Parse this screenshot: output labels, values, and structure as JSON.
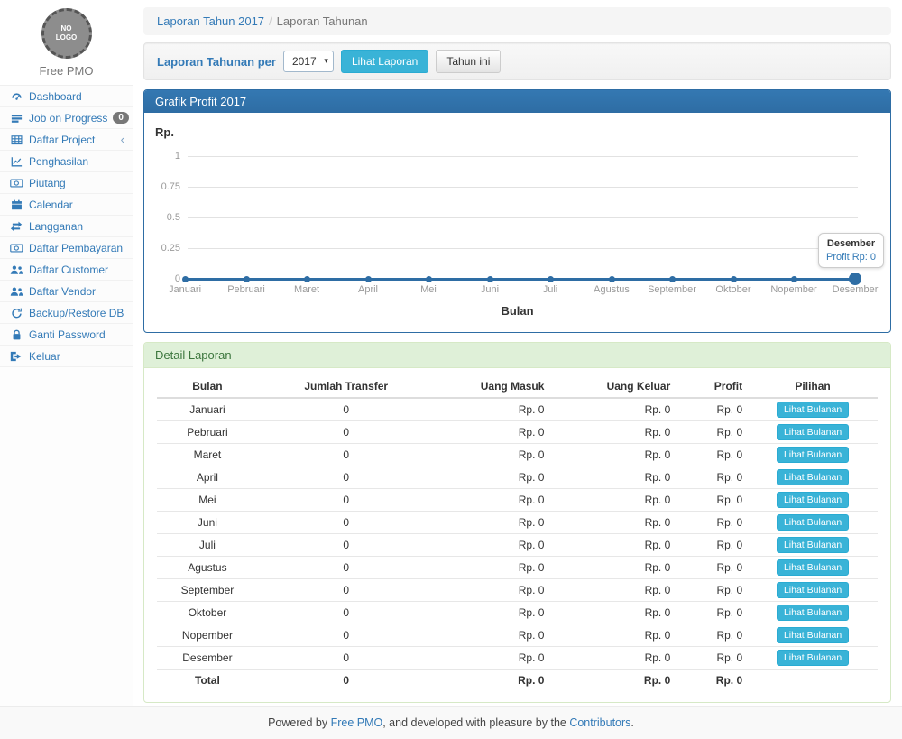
{
  "app": {
    "logo_text": "NO LOGO",
    "name": "Free PMO"
  },
  "sidebar": {
    "items": [
      {
        "slug": "dashboard",
        "label": "Dashboard",
        "icon": "dashboard"
      },
      {
        "slug": "job-on-progress",
        "label": "Job on Progress",
        "icon": "tasks",
        "badge": "0"
      },
      {
        "slug": "daftar-project",
        "label": "Daftar Project",
        "icon": "table",
        "chevron": true
      },
      {
        "slug": "penghasilan",
        "label": "Penghasilan",
        "icon": "line-chart"
      },
      {
        "slug": "piutang",
        "label": "Piutang",
        "icon": "money"
      },
      {
        "slug": "calendar",
        "label": "Calendar",
        "icon": "calendar"
      },
      {
        "slug": "langganan",
        "label": "Langganan",
        "icon": "retweet"
      },
      {
        "slug": "daftar-pembayaran",
        "label": "Daftar Pembayaran",
        "icon": "money"
      },
      {
        "slug": "daftar-customer",
        "label": "Daftar Customer",
        "icon": "users"
      },
      {
        "slug": "daftar-vendor",
        "label": "Daftar Vendor",
        "icon": "users"
      },
      {
        "slug": "backup-restore-db",
        "label": "Backup/Restore DB",
        "icon": "refresh"
      },
      {
        "slug": "ganti-password",
        "label": "Ganti Password",
        "icon": "lock"
      },
      {
        "slug": "keluar",
        "label": "Keluar",
        "icon": "sign-out"
      }
    ]
  },
  "breadcrumb": {
    "link": "Laporan Tahun 2017",
    "separator": "/",
    "current": "Laporan Tahunan"
  },
  "filter": {
    "label": "Laporan Tahunan per",
    "year_value": "2017",
    "submit_label": "Lihat Laporan",
    "this_year_label": "Tahun ini"
  },
  "chart_panel": {
    "title": "Grafik Profit 2017"
  },
  "chart_data": {
    "type": "line",
    "title": "Grafik Profit 2017",
    "xlabel": "Bulan",
    "ylabel": "Rp.",
    "categories": [
      "Januari",
      "Pebruari",
      "Maret",
      "April",
      "Mei",
      "Juni",
      "Juli",
      "Agustus",
      "September",
      "Oktober",
      "Nopember",
      "Desember"
    ],
    "values": [
      0,
      0,
      0,
      0,
      0,
      0,
      0,
      0,
      0,
      0,
      0,
      0
    ],
    "yticks": [
      1,
      0.75,
      0.5,
      0.25,
      0
    ],
    "ylim": [
      0,
      1
    ],
    "grid": true,
    "legend": "none",
    "highlighted_point": "Desember",
    "tooltip": {
      "title": "Desember",
      "text": "Profit Rp: 0"
    },
    "line_color": "#2e6da4"
  },
  "detail_panel": {
    "title": "Detail Laporan",
    "table": {
      "columns": [
        "Bulan",
        "Jumlah Transfer",
        "Uang Masuk",
        "Uang Keluar",
        "Profit",
        "Pilihan"
      ],
      "action_label": "Lihat Bulanan",
      "rows": [
        [
          "Januari",
          "0",
          "Rp. 0",
          "Rp. 0",
          "Rp. 0"
        ],
        [
          "Pebruari",
          "0",
          "Rp. 0",
          "Rp. 0",
          "Rp. 0"
        ],
        [
          "Maret",
          "0",
          "Rp. 0",
          "Rp. 0",
          "Rp. 0"
        ],
        [
          "April",
          "0",
          "Rp. 0",
          "Rp. 0",
          "Rp. 0"
        ],
        [
          "Mei",
          "0",
          "Rp. 0",
          "Rp. 0",
          "Rp. 0"
        ],
        [
          "Juni",
          "0",
          "Rp. 0",
          "Rp. 0",
          "Rp. 0"
        ],
        [
          "Juli",
          "0",
          "Rp. 0",
          "Rp. 0",
          "Rp. 0"
        ],
        [
          "Agustus",
          "0",
          "Rp. 0",
          "Rp. 0",
          "Rp. 0"
        ],
        [
          "September",
          "0",
          "Rp. 0",
          "Rp. 0",
          "Rp. 0"
        ],
        [
          "Oktober",
          "0",
          "Rp. 0",
          "Rp. 0",
          "Rp. 0"
        ],
        [
          "Nopember",
          "0",
          "Rp. 0",
          "Rp. 0",
          "Rp. 0"
        ],
        [
          "Desember",
          "0",
          "Rp. 0",
          "Rp. 0",
          "Rp. 0"
        ]
      ],
      "total_row": [
        "Total",
        "0",
        "Rp. 0",
        "Rp. 0",
        "Rp. 0"
      ]
    }
  },
  "footer": {
    "prefix": "Powered by ",
    "link1": "Free PMO",
    "middle": ", and developed with pleasure by the ",
    "link2": "Contributors",
    "suffix": "."
  },
  "colors": {
    "primary": "#2e6da4",
    "info_button": "#39b3d7",
    "link": "#337ab7",
    "success_header_bg": "#dff0d8",
    "success_header_text": "#3c763d",
    "badge_bg": "#777777"
  }
}
